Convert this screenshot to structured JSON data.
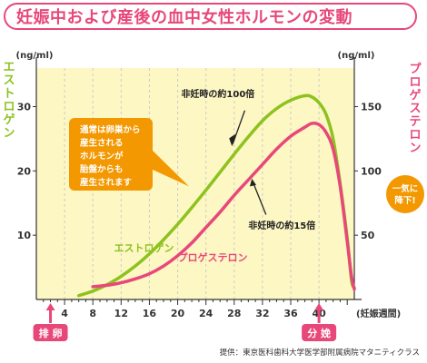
{
  "title": "妊娠中および産後の血中女性ホルモンの変動",
  "source": "提供：東京医科歯科大学医学部附属病院マタニティクラス",
  "colors": {
    "estrogen": "#8dc21f",
    "progesterone": "#e8477a",
    "plot_bg": "#fdf7c3",
    "callout": "#f39800"
  },
  "chart_data": {
    "type": "line",
    "x_label": "(妊娠週間)",
    "x_ticks": [
      4,
      8,
      12,
      16,
      20,
      24,
      28,
      32,
      36,
      40
    ],
    "xlim": [
      0,
      45
    ],
    "y_left": {
      "label": "エストロゲン",
      "unit": "(ng/ml)",
      "ticks": [
        10,
        20,
        30
      ],
      "ylim": [
        0,
        36
      ]
    },
    "y_right": {
      "label": "プロゲステロン",
      "unit": "(ng/ml)",
      "ticks": [
        50,
        100,
        150
      ],
      "ylim": [
        0,
        180
      ]
    },
    "series": [
      {
        "name": "エストロゲン",
        "axis": "left",
        "points": [
          [
            6,
            0.6
          ],
          [
            8,
            1.3
          ],
          [
            10,
            2.3
          ],
          [
            12,
            3.6
          ],
          [
            14,
            5.2
          ],
          [
            16,
            7.1
          ],
          [
            18,
            9.3
          ],
          [
            20,
            11.7
          ],
          [
            22,
            14.3
          ],
          [
            24,
            17.0
          ],
          [
            26,
            19.8
          ],
          [
            28,
            22.6
          ],
          [
            30,
            25.3
          ],
          [
            32,
            27.8
          ],
          [
            34,
            29.7
          ],
          [
            36,
            31.0
          ],
          [
            38,
            31.7
          ],
          [
            39,
            31.5
          ],
          [
            40,
            30.6
          ],
          [
            41,
            28.8
          ],
          [
            42,
            25.0
          ],
          [
            43,
            18.0
          ],
          [
            44,
            9.5
          ],
          [
            44.6,
            3.0
          ],
          [
            45,
            1.8
          ]
        ]
      },
      {
        "name": "プロゲステロン",
        "axis": "right",
        "points": [
          [
            8,
            10
          ],
          [
            10,
            11
          ],
          [
            12,
            13
          ],
          [
            14,
            16
          ],
          [
            16,
            20
          ],
          [
            18,
            26
          ],
          [
            20,
            34
          ],
          [
            22,
            44
          ],
          [
            24,
            56
          ],
          [
            26,
            68
          ],
          [
            28,
            81
          ],
          [
            30,
            93
          ],
          [
            32,
            105
          ],
          [
            34,
            117
          ],
          [
            36,
            127
          ],
          [
            38,
            134
          ],
          [
            39,
            137
          ],
          [
            40,
            136
          ],
          [
            41,
            130
          ],
          [
            42,
            117
          ],
          [
            43,
            88
          ],
          [
            44,
            45
          ],
          [
            44.6,
            18
          ],
          [
            45,
            8
          ]
        ]
      }
    ],
    "annotations": [
      {
        "text": "非妊時の約100倍",
        "series": "エストロゲン"
      },
      {
        "text": "非妊時の約15倍",
        "series": "プロゲステロン"
      },
      {
        "text": "通常は卵巣から産生されるホルモンが胎盤からも産生されます",
        "lines": [
          "通常は卵巣から",
          "産生される",
          "ホルモンが",
          "胎盤からも",
          "産生されます"
        ]
      },
      {
        "text": "一気に降下!",
        "lines": [
          "一気に",
          "降下!"
        ]
      }
    ],
    "markers": [
      {
        "label": "排 卵",
        "x": 2
      },
      {
        "label": "分 娩",
        "x": 40
      }
    ]
  }
}
